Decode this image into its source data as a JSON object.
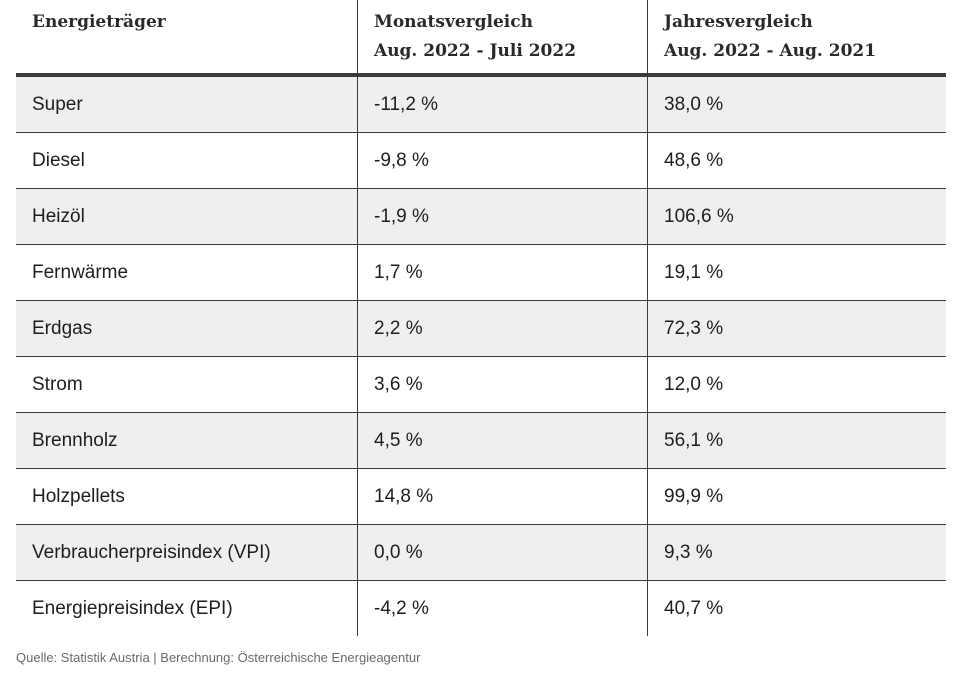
{
  "chart_data": {
    "type": "table",
    "columns": [
      "Energieträger",
      "Monatsvergleich Aug. 2022 - Juli 2022",
      "Jahresvergleich Aug. 2022 - Aug. 2021"
    ],
    "rows": [
      [
        "Super",
        "-11,2 %",
        "38,0 %"
      ],
      [
        "Diesel",
        "-9,8 %",
        "48,6 %"
      ],
      [
        "Heizöl",
        "-1,9 %",
        "106,6 %"
      ],
      [
        "Fernwärme",
        "1,7 %",
        "19,1 %"
      ],
      [
        "Erdgas",
        "2,2 %",
        "72,3 %"
      ],
      [
        "Strom",
        "3,6 %",
        "12,0 %"
      ],
      [
        "Brennholz",
        "4,5 %",
        "56,1 %"
      ],
      [
        "Holzpellets",
        "14,8 %",
        "99,9 %"
      ],
      [
        "Verbraucherpreisindex (VPI)",
        "0,0 %",
        "9,3 %"
      ],
      [
        "Energiepreisindex (EPI)",
        "-4,2 %",
        "40,7 %"
      ]
    ]
  },
  "header": {
    "col1": "Energieträger",
    "col2_line1": "Monatsvergleich",
    "col2_line2": "Aug. 2022 - Juli 2022",
    "col3_line1": "Jahresvergleich",
    "col3_line2": "Aug. 2022 - Aug. 2021"
  },
  "source": "Quelle: Statistik Austria | Berechnung: Österreichische Energieagentur",
  "colors": {
    "shaded_row": "#efefef",
    "rule": "#3b3b3b",
    "text": "#1e1e1e",
    "source_text": "#6a6a6a"
  }
}
